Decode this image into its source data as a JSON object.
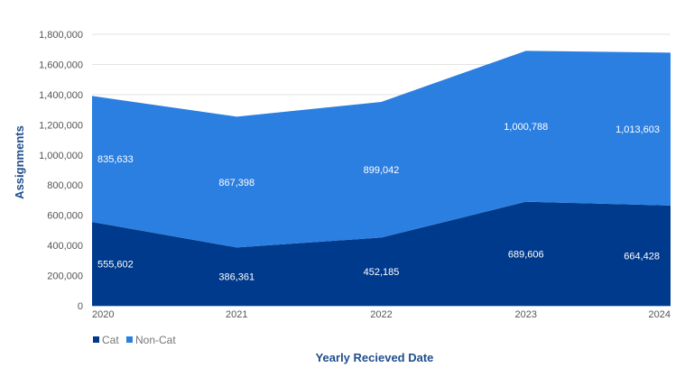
{
  "chart_data": {
    "type": "area",
    "stacked": true,
    "categories": [
      "2020",
      "2021",
      "2022",
      "2023",
      "2024"
    ],
    "series": [
      {
        "name": "Cat",
        "color": "#003a8c",
        "values": [
          555602,
          386361,
          452185,
          689606,
          664428
        ],
        "labels": [
          "555,602",
          "386,361",
          "452,185",
          "689,606",
          "664,428"
        ]
      },
      {
        "name": "Non-Cat",
        "color": "#2b7fe0",
        "values": [
          835633,
          867398,
          899042,
          1000788,
          1013603
        ],
        "labels": [
          "835,633",
          "867,398",
          "899,042",
          "1,000,788",
          "1,013,603"
        ]
      }
    ],
    "xlabel": "Yearly Recieved Date",
    "ylabel": "Assignments",
    "ylim": [
      0,
      1800000
    ],
    "yticks": [
      "0",
      "200,000",
      "400,000",
      "600,000",
      "800,000",
      "1,000,000",
      "1,200,000",
      "1,400,000",
      "1,600,000",
      "1,800,000"
    ],
    "grid": true,
    "legend": "bottom-left"
  }
}
